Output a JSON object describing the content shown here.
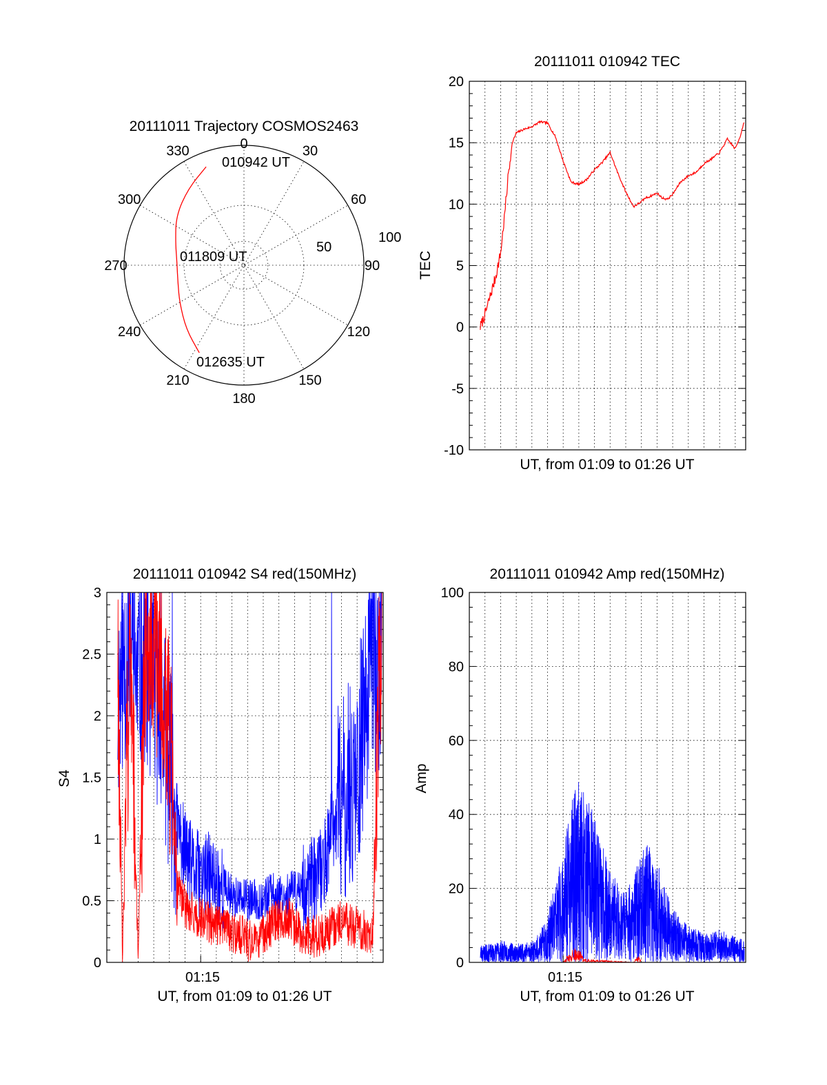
{
  "chart_data": [
    {
      "id": "polar",
      "type": "polar",
      "title": "20111011 Trajectory COSMOS2463",
      "angle_labels": [
        "0",
        "30",
        "60",
        "90",
        "120",
        "150",
        "180",
        "210",
        "240",
        "270",
        "300",
        "330"
      ],
      "radial_labels": [
        "50",
        "100"
      ],
      "rlim": [
        0,
        100
      ],
      "series": [
        {
          "color": "#ff0000",
          "points": [
            {
              "az": 339,
              "r": 88
            },
            {
              "az": 324,
              "r": 79
            },
            {
              "az": 306,
              "r": 70
            },
            {
              "az": 288,
              "r": 60
            },
            {
              "az": 273,
              "r": 56
            },
            {
              "az": 255,
              "r": 57
            },
            {
              "az": 240,
              "r": 62
            },
            {
              "az": 222,
              "r": 72
            },
            {
              "az": 207,
              "r": 82
            }
          ]
        }
      ],
      "annotations": [
        {
          "text": "010942 UT",
          "az": 339,
          "r": 88
        },
        {
          "text": "011809 UT",
          "az": 273,
          "r": 56
        },
        {
          "text": "012635 UT",
          "az": 207,
          "r": 82
        }
      ]
    },
    {
      "id": "tec",
      "type": "line",
      "title": "20111011 010942 TEC",
      "xlabel": "UT, from 01:09 to 01:26 UT",
      "ylabel": "TEC",
      "xlim": [
        "01:09:00",
        "01:26:40"
      ],
      "ylim": [
        -10,
        20
      ],
      "yticks": [
        -10,
        -5,
        0,
        5,
        10,
        15,
        20
      ],
      "grid": true,
      "series": [
        {
          "color": "#ff0000",
          "x": [
            "01:09:42",
            "01:10:00",
            "01:10:20",
            "01:10:40",
            "01:11:00",
            "01:11:15",
            "01:11:30",
            "01:11:45",
            "01:12:00",
            "01:12:30",
            "01:13:00",
            "01:13:30",
            "01:14:00",
            "01:14:30",
            "01:15:00",
            "01:15:30",
            "01:16:00",
            "01:16:30",
            "01:17:00",
            "01:17:30",
            "01:18:00",
            "01:18:30",
            "01:19:00",
            "01:19:30",
            "01:20:00",
            "01:20:15",
            "01:20:30",
            "01:21:00",
            "01:21:20",
            "01:21:40",
            "01:22:00",
            "01:22:30",
            "01:23:00",
            "01:23:30",
            "01:24:00",
            "01:24:30",
            "01:25:00",
            "01:25:30",
            "01:26:00",
            "01:26:20",
            "01:26:35"
          ],
          "y": [
            0,
            1,
            2.5,
            4,
            6,
            9,
            12.5,
            15,
            15.8,
            16.1,
            16.3,
            16.7,
            16.6,
            15.5,
            13.5,
            11.8,
            11.6,
            12,
            12.8,
            13.4,
            14.2,
            12.5,
            11,
            9.8,
            10.2,
            10.5,
            10.6,
            10.9,
            10.5,
            10.4,
            10.8,
            11.8,
            12.3,
            12.6,
            13.3,
            13.7,
            14.2,
            15.3,
            14.5,
            15.6,
            16.8
          ]
        }
      ]
    },
    {
      "id": "s4",
      "type": "line",
      "title": "20111011 010942 S4 red(150MHz)",
      "xlabel": "UT, from 01:09 to 01:26 UT",
      "ylabel": "S4",
      "xlim": [
        "01:09:00",
        "01:26:40"
      ],
      "ylim": [
        0,
        3
      ],
      "yticks": [
        "0",
        "0.5",
        "1",
        "1.5",
        "2",
        "2.5",
        "3"
      ],
      "xticks": [
        {
          "x": "01:15:00",
          "label": "01:15"
        }
      ],
      "grid": true,
      "series": [
        {
          "color": "#0000ff",
          "x": [
            "01:09:42",
            "01:10:00",
            "01:10:30",
            "01:11:00",
            "01:11:30",
            "01:12:00",
            "01:12:30",
            "01:13:00",
            "01:13:30",
            "01:14:00",
            "01:14:30",
            "01:15:00",
            "01:15:30",
            "01:16:00",
            "01:16:30",
            "01:17:00",
            "01:17:30",
            "01:18:00",
            "01:18:30",
            "01:19:00",
            "01:19:30",
            "01:20:00",
            "01:20:30",
            "01:21:00",
            "01:21:30",
            "01:22:00",
            "01:22:30",
            "01:23:00",
            "01:23:30",
            "01:24:00",
            "01:24:30",
            "01:25:00",
            "01:25:30",
            "01:26:00",
            "01:26:20",
            "01:26:35"
          ],
          "y": [
            2.1,
            2.4,
            2.6,
            2.3,
            2.5,
            2.2,
            2.0,
            1.6,
            1.1,
            0.9,
            0.75,
            0.7,
            0.7,
            0.65,
            0.6,
            0.55,
            0.5,
            0.5,
            0.5,
            0.52,
            0.55,
            0.55,
            0.55,
            0.58,
            0.6,
            0.65,
            0.7,
            0.85,
            1.1,
            1.3,
            1.4,
            1.6,
            2.0,
            2.6,
            2.2,
            2.8
          ]
        },
        {
          "color": "#ff0000",
          "x": [
            "01:09:42",
            "01:10:00",
            "01:10:30",
            "01:11:00",
            "01:11:30",
            "01:12:00",
            "01:12:30",
            "01:13:00",
            "01:13:30",
            "01:14:00",
            "01:14:30",
            "01:15:00",
            "01:15:30",
            "01:16:00",
            "01:16:30",
            "01:17:00",
            "01:17:30",
            "01:18:00",
            "01:18:30",
            "01:19:00",
            "01:19:30",
            "01:20:00",
            "01:20:30",
            "01:21:00",
            "01:21:30",
            "01:22:00",
            "01:22:30",
            "01:23:00",
            "01:23:30",
            "01:24:00",
            "01:24:30",
            "01:25:00",
            "01:25:30",
            "01:26:00",
            "01:26:20",
            "01:26:35"
          ],
          "y": [
            2.6,
            0.05,
            2.7,
            0.05,
            2.8,
            2.6,
            2.4,
            1.8,
            0.6,
            0.45,
            0.4,
            0.35,
            0.32,
            0.3,
            0.28,
            0.25,
            0.22,
            0.18,
            0.18,
            0.22,
            0.3,
            0.35,
            0.38,
            0.3,
            0.22,
            0.2,
            0.22,
            0.25,
            0.3,
            0.35,
            0.3,
            0.28,
            0.25,
            0.2,
            2.0,
            2.5
          ]
        }
      ]
    },
    {
      "id": "amp",
      "type": "line",
      "title": "20111011 010942 Amp red(150MHz)",
      "xlabel": "UT, from 01:09 to 01:26 UT",
      "ylabel": "Amp",
      "xlim": [
        "01:09:00",
        "01:26:40"
      ],
      "ylim": [
        0,
        100
      ],
      "yticks": [
        0,
        20,
        40,
        60,
        80,
        100
      ],
      "xticks": [
        {
          "x": "01:15:00",
          "label": "01:15"
        }
      ],
      "grid": true,
      "series": [
        {
          "color": "#0000ff",
          "x": [
            "01:09:42",
            "01:10:30",
            "01:11:00",
            "01:12:00",
            "01:13:00",
            "01:13:30",
            "01:14:00",
            "01:14:30",
            "01:15:00",
            "01:15:30",
            "01:16:00",
            "01:16:30",
            "01:17:00",
            "01:17:30",
            "01:18:00",
            "01:18:30",
            "01:19:00",
            "01:19:30",
            "01:20:00",
            "01:20:30",
            "01:21:00",
            "01:21:30",
            "01:22:00",
            "01:22:30",
            "01:23:00",
            "01:23:30",
            "01:24:00",
            "01:24:30",
            "01:25:00",
            "01:25:30",
            "01:26:00",
            "01:26:35"
          ],
          "y": [
            5,
            5,
            6,
            5,
            6,
            8,
            13,
            22,
            30,
            43,
            50,
            47,
            40,
            32,
            25,
            22,
            20,
            24,
            30,
            33,
            28,
            20,
            15,
            12,
            10,
            9,
            8,
            8,
            9,
            8,
            7,
            6
          ]
        },
        {
          "color": "#ff0000",
          "x": [
            "01:15:00",
            "01:15:15",
            "01:15:30",
            "01:15:45",
            "01:16:00",
            "01:16:10",
            "01:16:20",
            "01:19:30",
            "01:19:45",
            "01:20:00"
          ],
          "y": [
            0,
            2,
            3,
            5,
            3,
            4,
            1,
            0,
            2,
            1
          ]
        }
      ]
    }
  ]
}
